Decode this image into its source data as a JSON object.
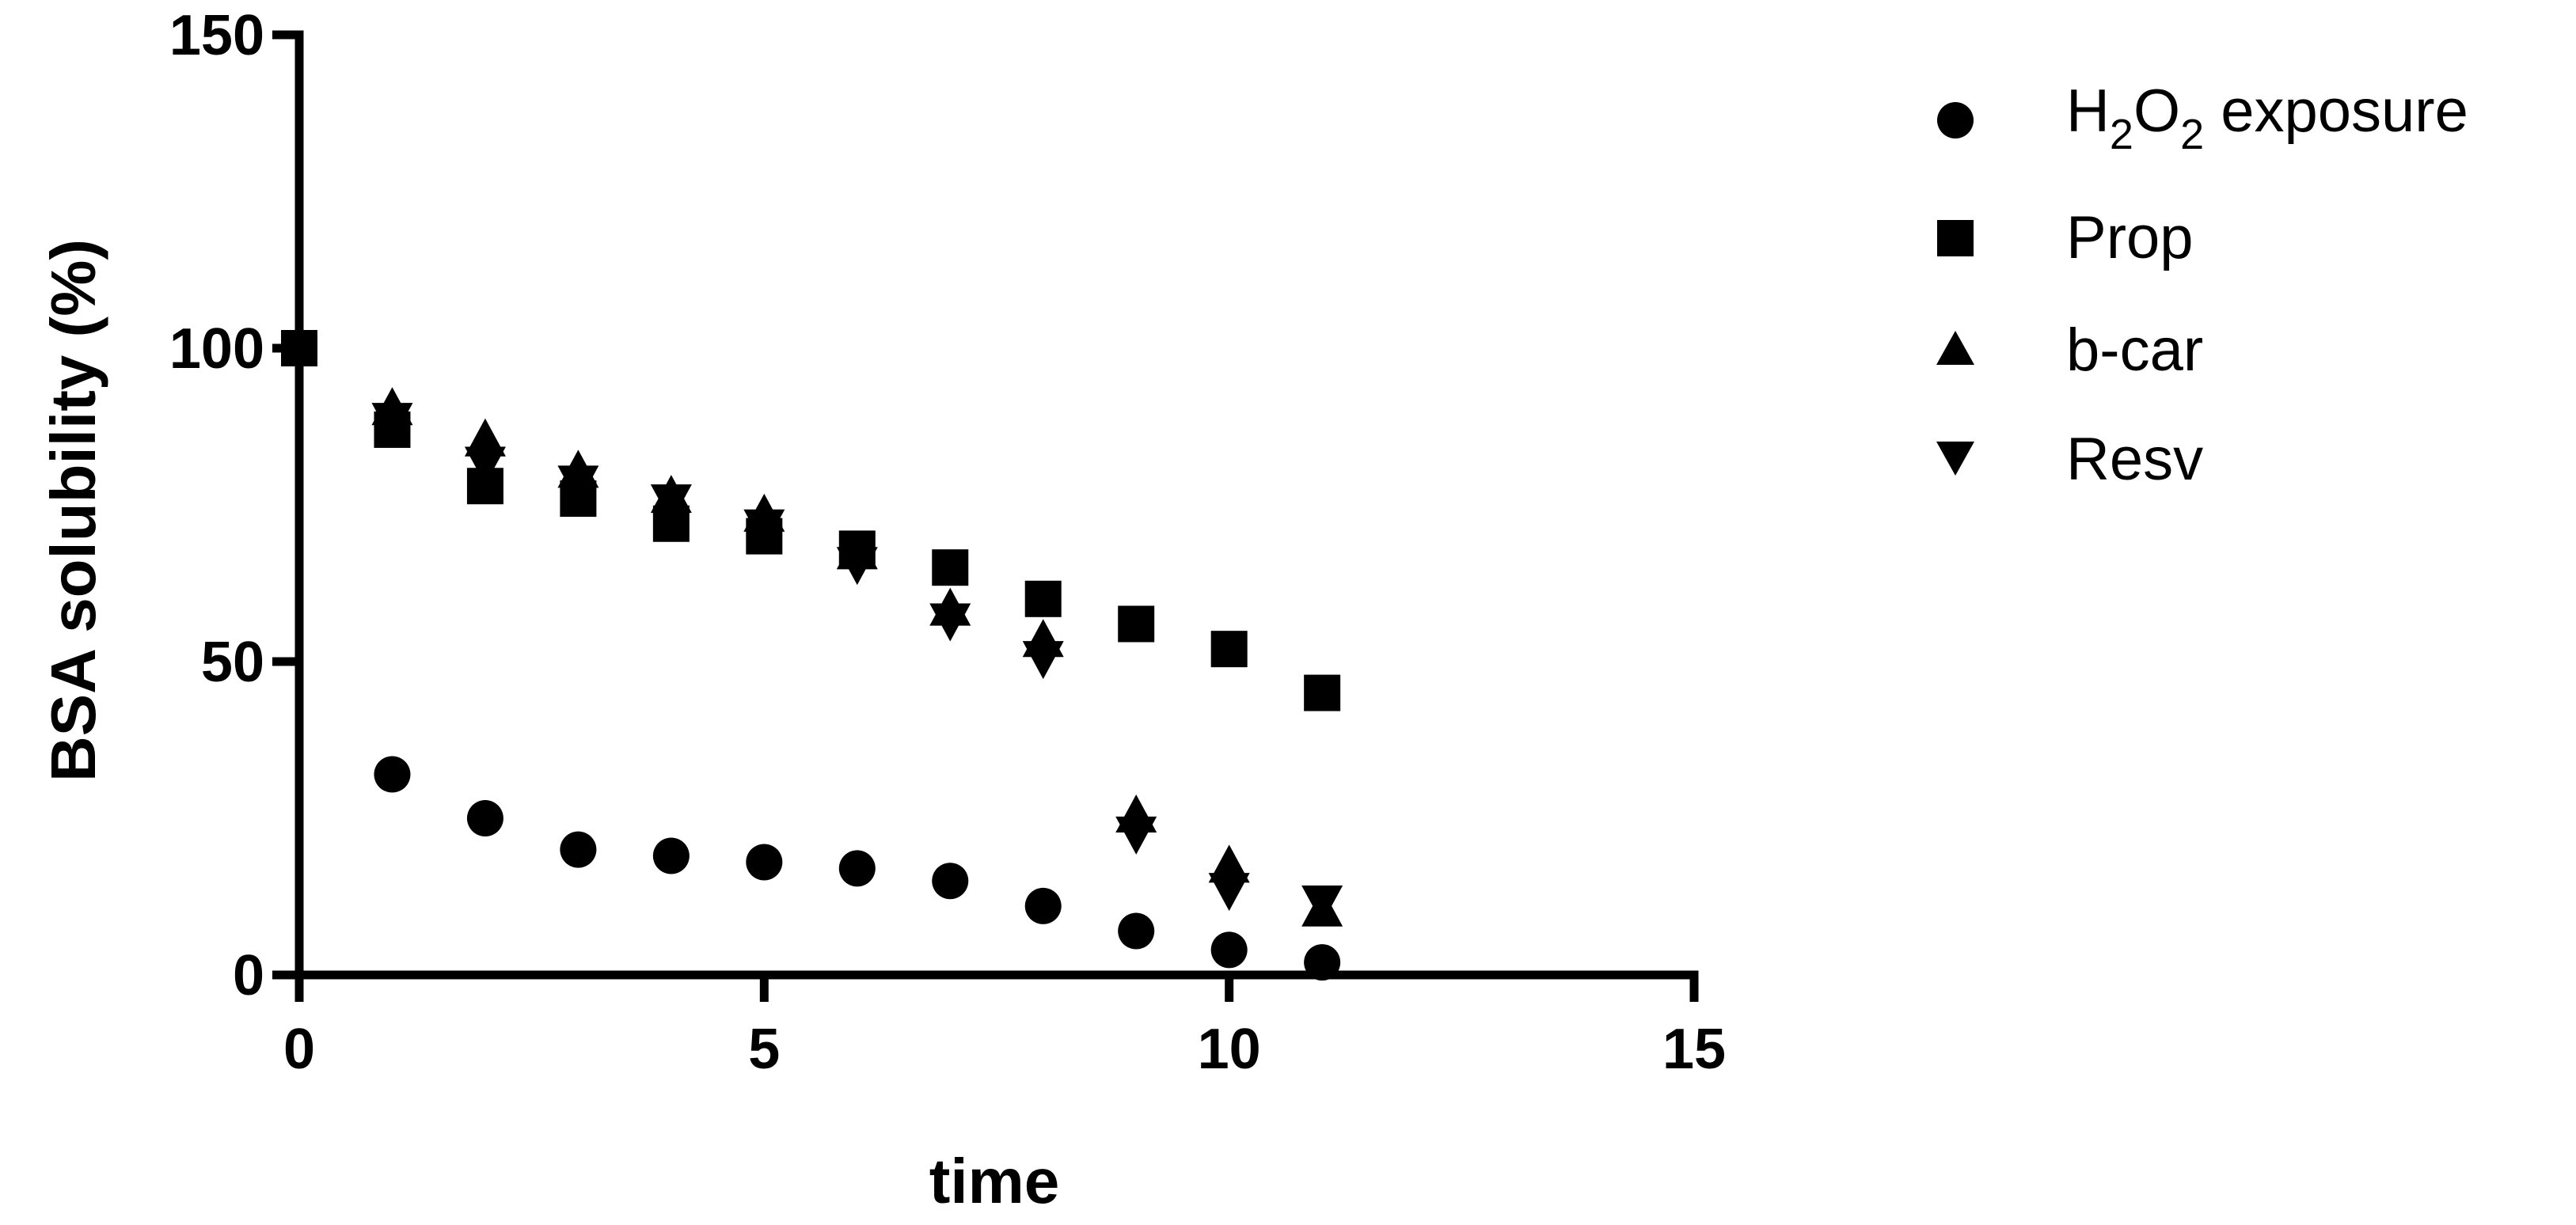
{
  "chart_data": {
    "type": "scatter",
    "xlabel": "time",
    "ylabel": "BSA solubility (%)",
    "xlim": [
      0,
      15
    ],
    "ylim": [
      0,
      150
    ],
    "xticks": [
      0,
      5,
      10,
      15
    ],
    "yticks": [
      0,
      50,
      100,
      150
    ],
    "grid": false,
    "legend_position": "right",
    "series": [
      {
        "name_main": "H",
        "name_sub1": "2",
        "name_mid": "O",
        "name_sub2": "2",
        "name_tail": " exposure",
        "marker": "circle",
        "x": [
          1,
          2,
          3,
          4,
          5,
          6,
          7,
          8,
          9,
          10,
          11
        ],
        "y": [
          32,
          25,
          20,
          19,
          18,
          17,
          15,
          11,
          7,
          4,
          2
        ]
      },
      {
        "name": "Prop",
        "marker": "square",
        "x": [
          0,
          1,
          2,
          3,
          4,
          5,
          6,
          7,
          8,
          9,
          10,
          11
        ],
        "y": [
          100,
          87,
          78,
          76,
          72,
          70,
          68,
          65,
          60,
          56,
          52,
          45
        ]
      },
      {
        "name": "b-car",
        "marker": "triangle-up",
        "x": [
          1,
          2,
          3,
          4,
          5,
          6,
          7,
          8,
          9,
          10,
          11
        ],
        "y": [
          90,
          85,
          80,
          76,
          73,
          67,
          58,
          53,
          25,
          17,
          10
        ]
      },
      {
        "name": "Resv",
        "marker": "triangle-down",
        "x": [
          1,
          2,
          3,
          4,
          5,
          6,
          7,
          8,
          9,
          10,
          11
        ],
        "y": [
          89,
          82,
          79,
          76,
          72,
          66,
          57,
          51,
          23,
          14,
          12
        ]
      }
    ]
  }
}
